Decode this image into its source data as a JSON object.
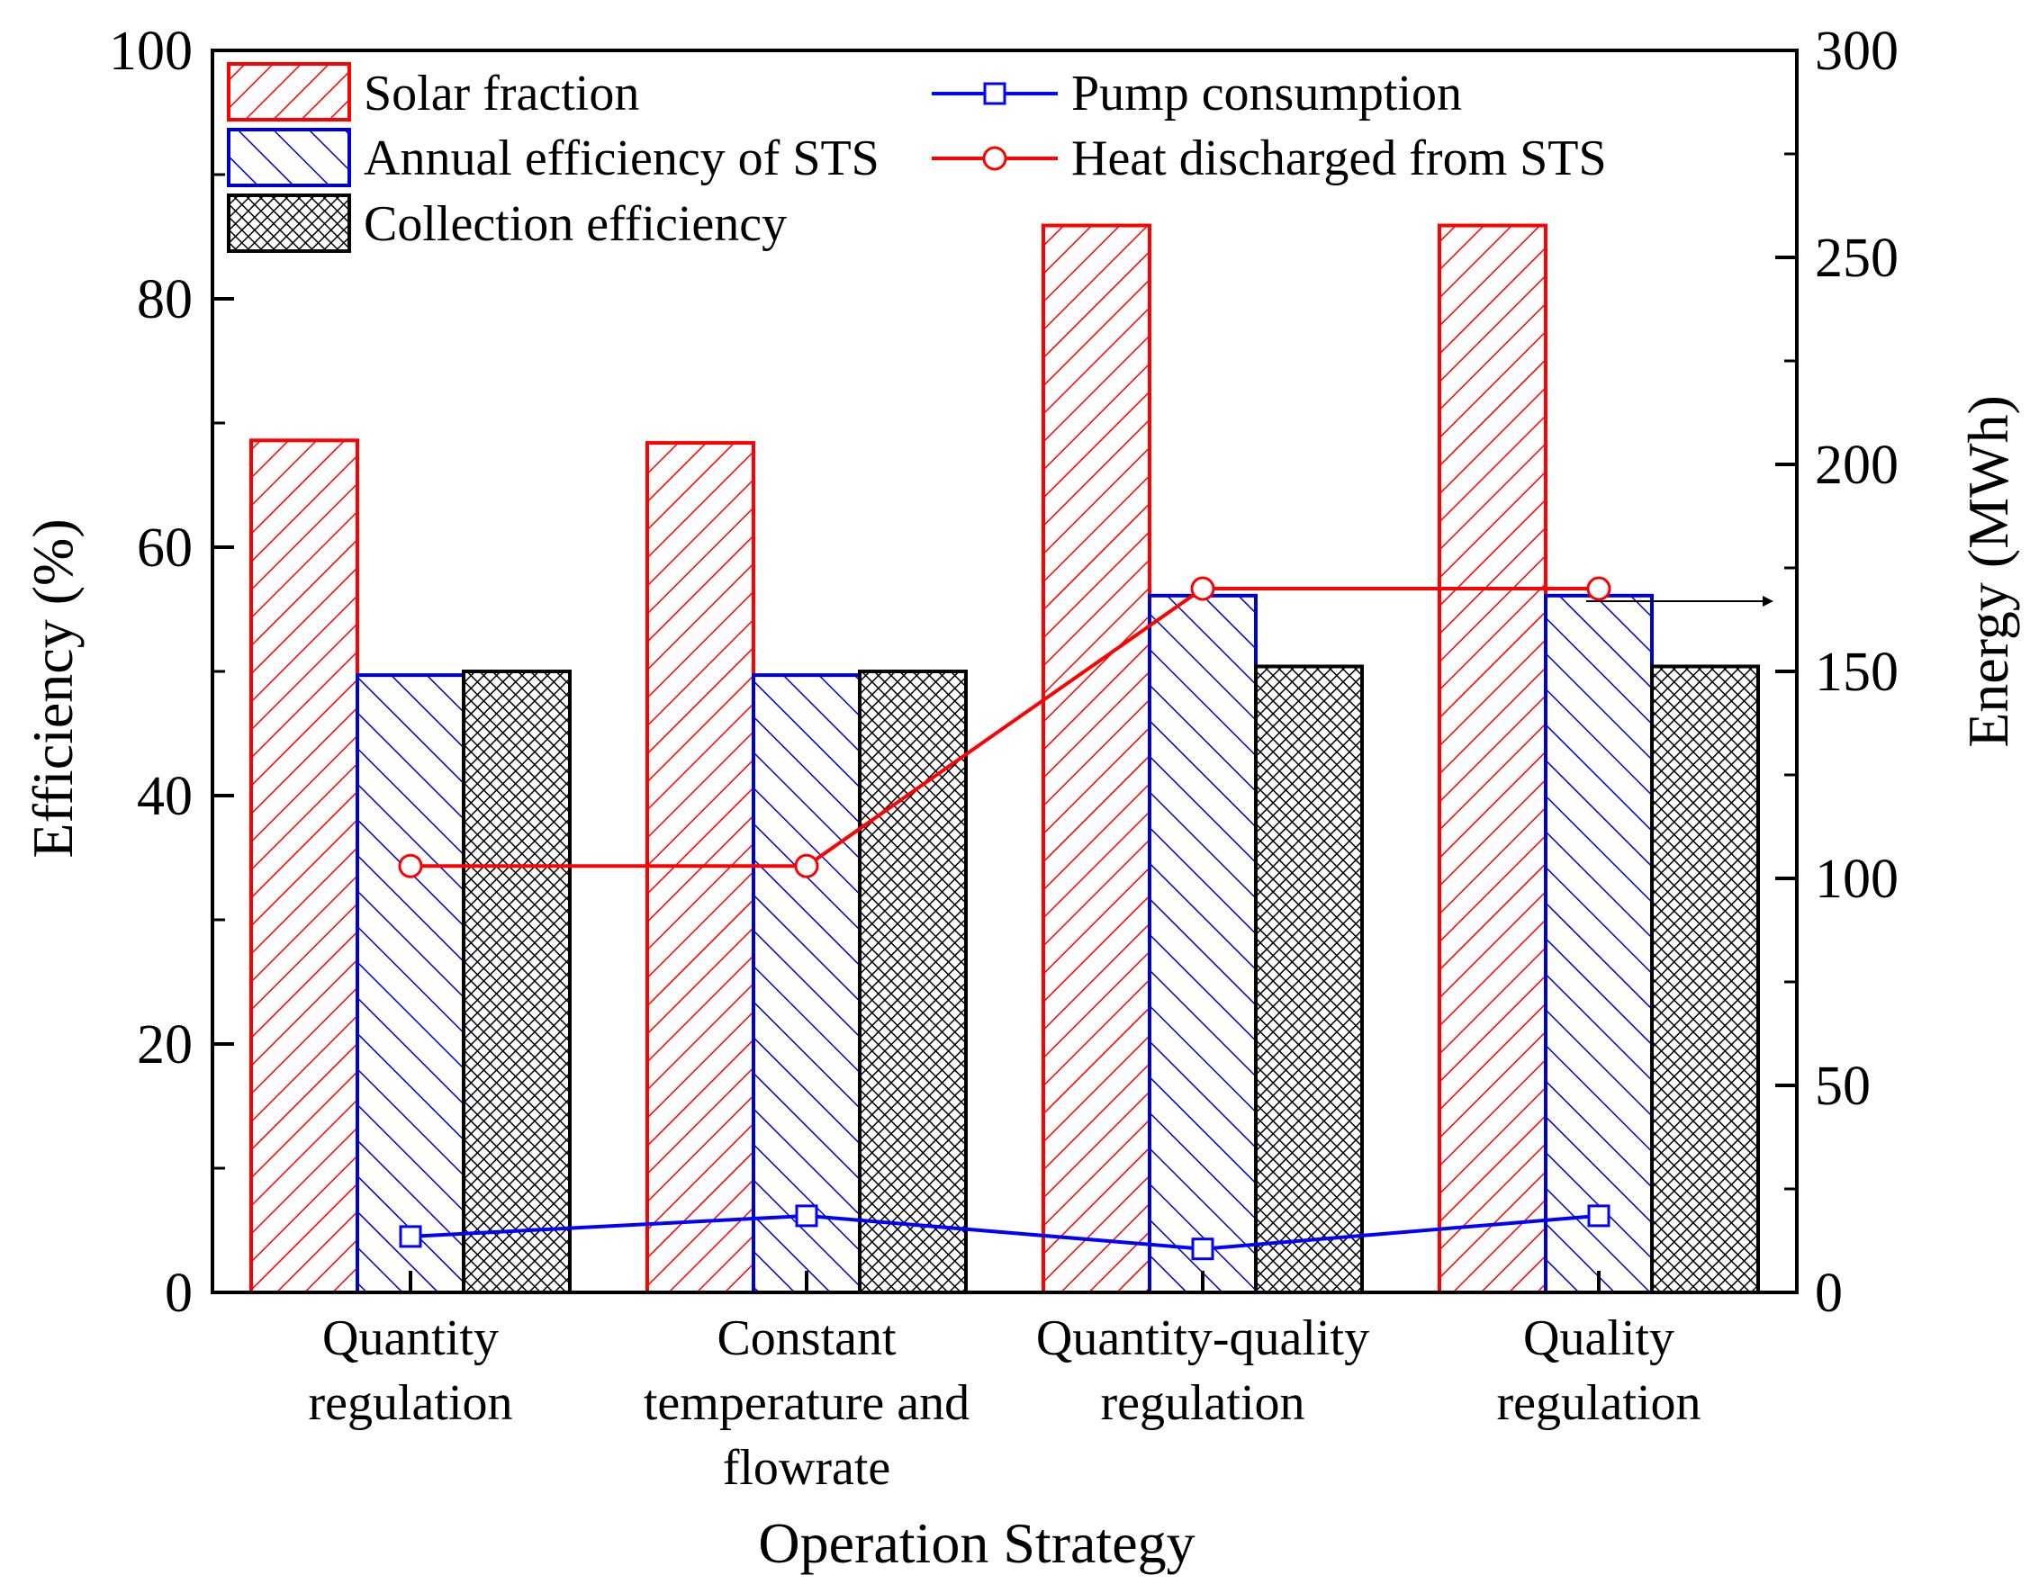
{
  "chart_data": {
    "type": "bar",
    "categories": [
      [
        "Quantity",
        "regulation"
      ],
      [
        "Constant",
        "temperature and",
        "flowrate"
      ],
      [
        "Quantity-quality",
        "regulation"
      ],
      [
        "Quality",
        "regulation"
      ]
    ],
    "xlabel": "Operation Strategy",
    "ylabel_left": "Efficiency (%)",
    "ylabel_right": "Energy (MWh)",
    "ylim_left": [
      0,
      100
    ],
    "ylim_right": [
      0,
      300
    ],
    "yticks_left": [
      "0",
      "20",
      "40",
      "60",
      "80",
      "100"
    ],
    "yticks_right": [
      "0",
      "50",
      "100",
      "150",
      "200",
      "250",
      "300"
    ],
    "grid": false,
    "legend_position": "top",
    "bar_series": [
      {
        "name": "Solar fraction",
        "axis": "left",
        "values": [
          68.6,
          68.4,
          85.9,
          85.9
        ],
        "color": "#ff0000",
        "pattern": "forward-hatch"
      },
      {
        "name": "Annual efficiency of STS",
        "axis": "left",
        "values": [
          49.7,
          49.7,
          56.1,
          56.1
        ],
        "color": "#0000cc",
        "pattern": "back-hatch"
      },
      {
        "name": "Collection efficiency",
        "axis": "left",
        "values": [
          50.0,
          50.0,
          50.4,
          50.4
        ],
        "color": "#000000",
        "pattern": "crosshatch"
      }
    ],
    "line_series": [
      {
        "name": "Pump consumption",
        "axis": "right",
        "values": [
          13.5,
          18.5,
          10.5,
          18.5
        ],
        "color": "#0000ff",
        "marker": "square"
      },
      {
        "name": "Heat discharged from STS",
        "axis": "right",
        "values": [
          103,
          103,
          170,
          170
        ],
        "color": "#ff0000",
        "marker": "circle"
      }
    ]
  }
}
